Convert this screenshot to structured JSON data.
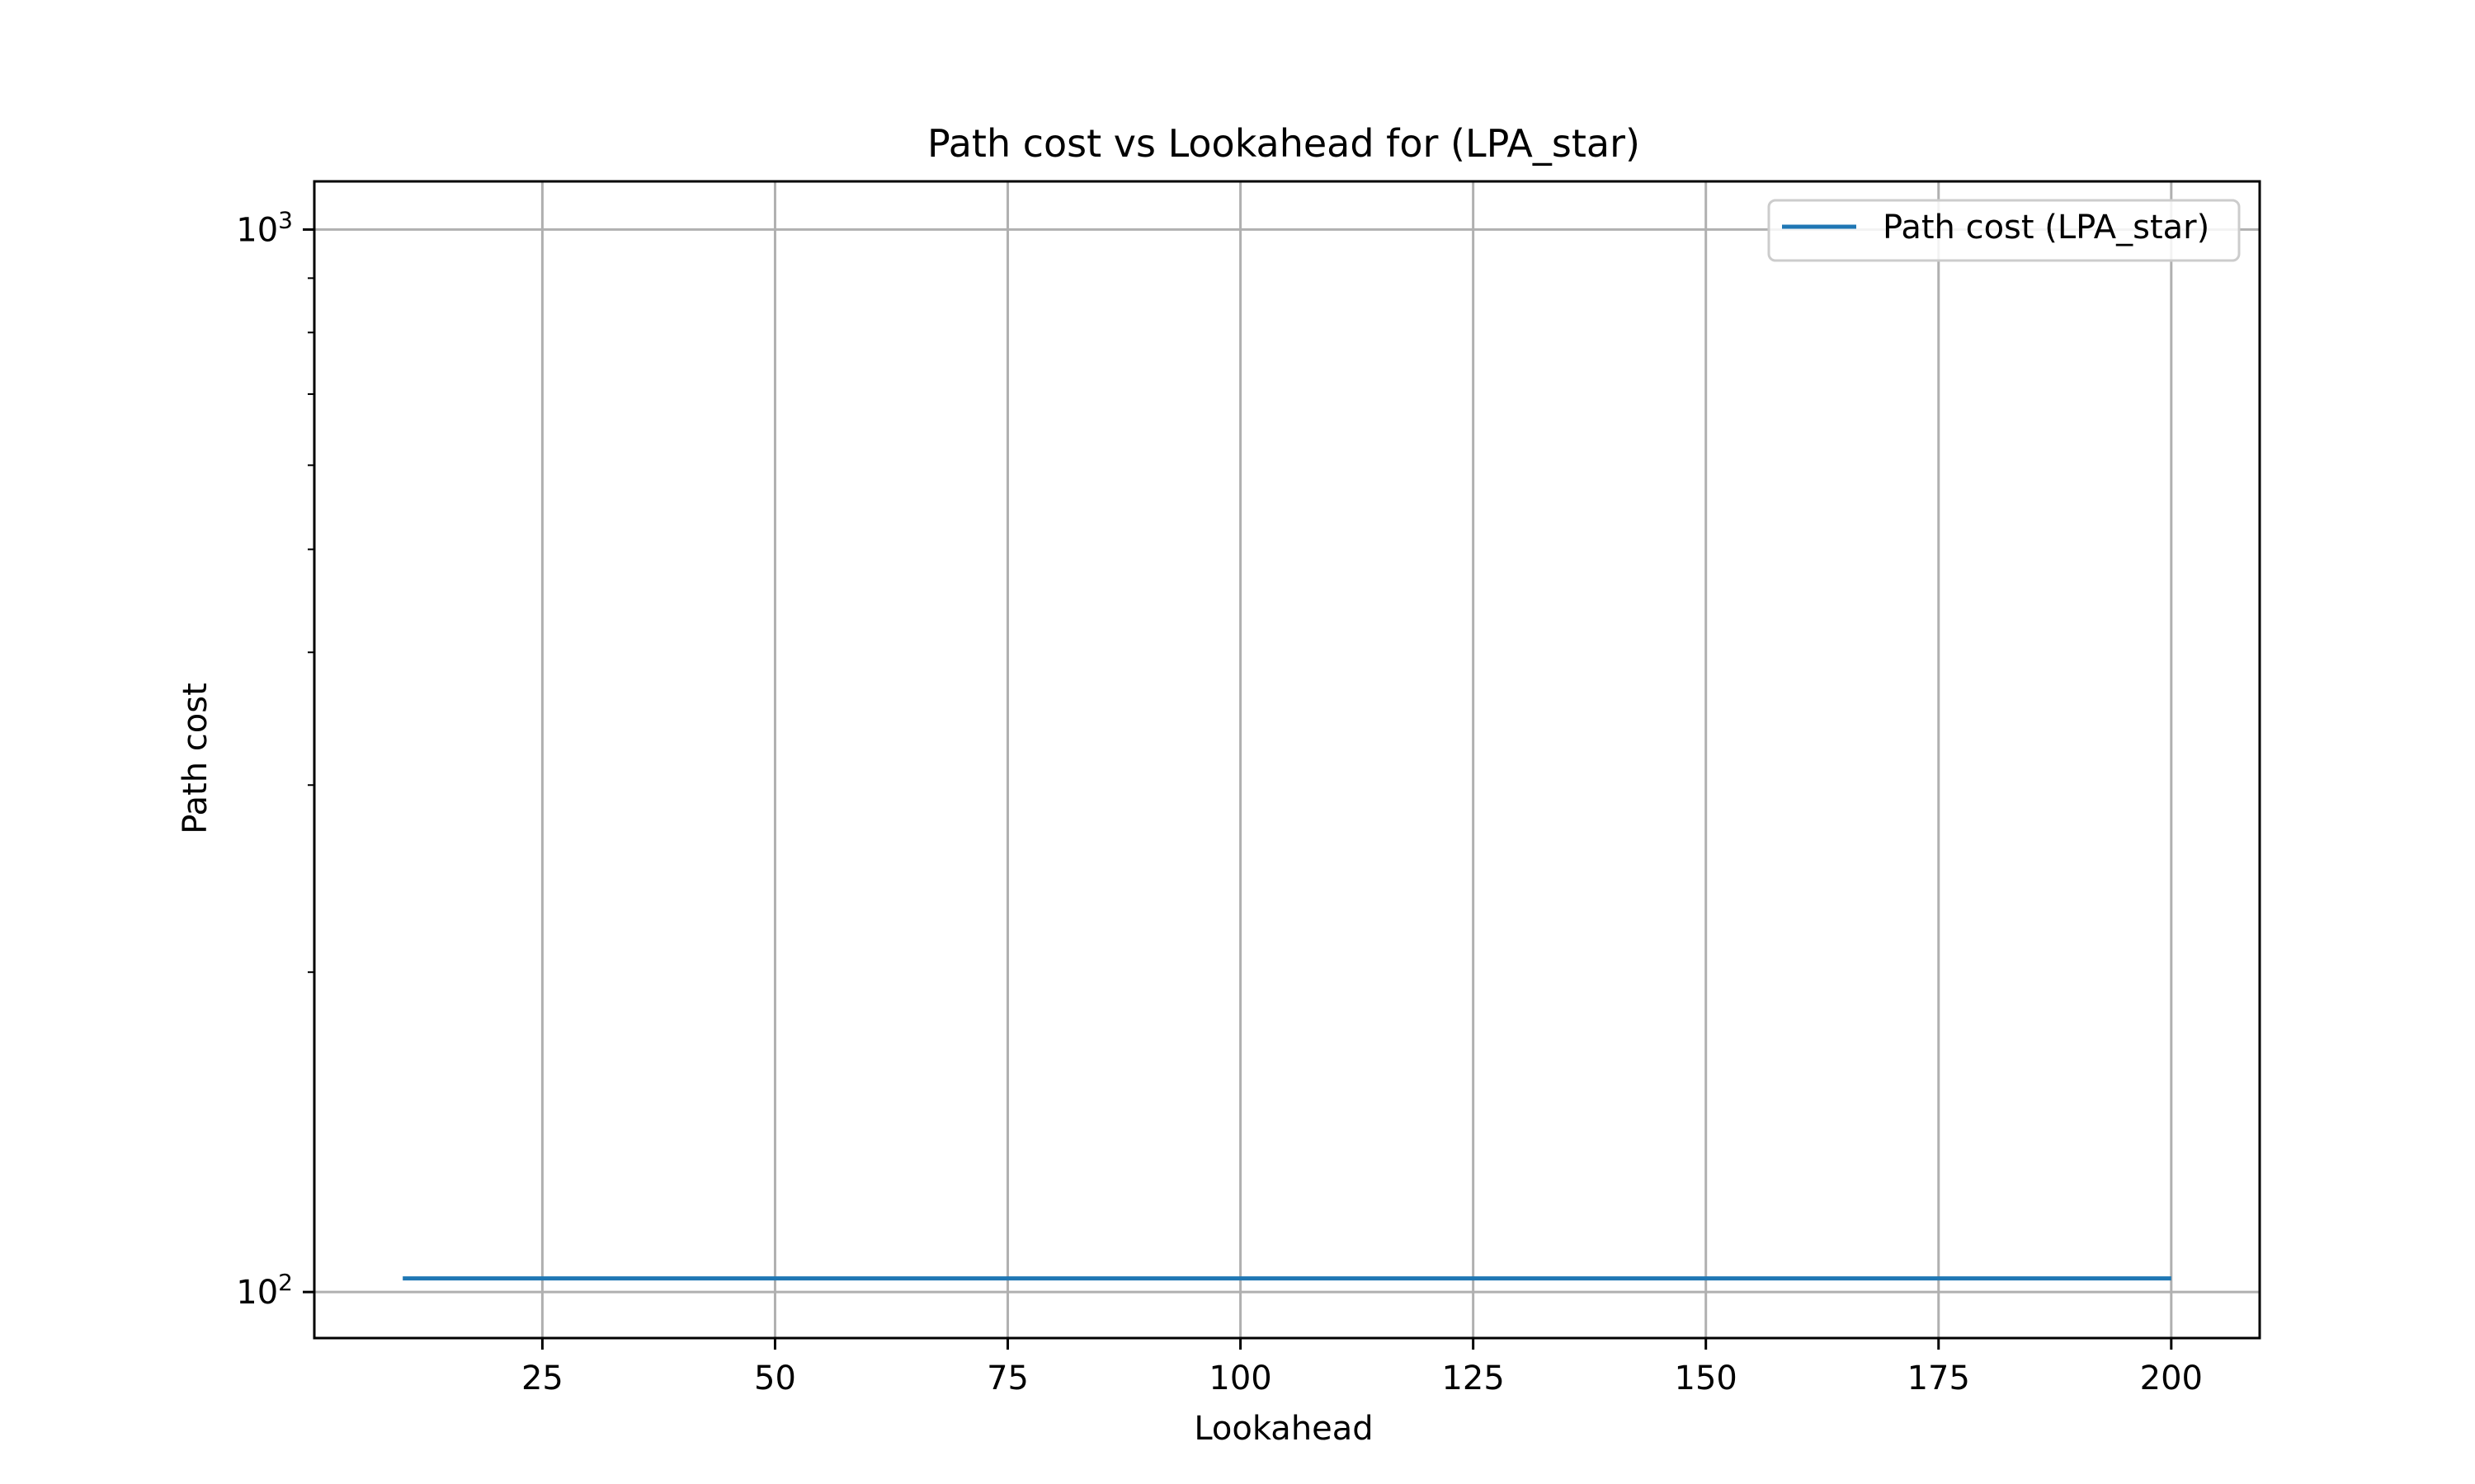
{
  "chart_data": {
    "type": "line",
    "title": "Path cost vs Lookahead for  (LPA_star)",
    "xlabel": "Lookahead",
    "ylabel": "Path cost",
    "x_ticks": [
      25,
      50,
      75,
      100,
      125,
      150,
      175,
      200
    ],
    "x_tick_labels": [
      "25",
      "50",
      "75",
      "100",
      "125",
      "150",
      "175",
      "200"
    ],
    "y_scale": "log",
    "y_ticks": [
      100,
      1000
    ],
    "y_tick_labels": [
      {
        "base": "10",
        "exp": "2"
      },
      {
        "base": "10",
        "exp": "3"
      }
    ],
    "xlim": [
      0.5,
      209.5
    ],
    "ylim": [
      90.5,
      1110
    ],
    "grid": true,
    "legend_position": "top-right",
    "series": [
      {
        "name": "Path cost (LPA_star)",
        "color": "#1f77b4",
        "x": [
          10,
          20,
          30,
          40,
          50,
          60,
          70,
          80,
          90,
          100,
          110,
          120,
          130,
          140,
          150,
          160,
          170,
          180,
          190,
          200
        ],
        "y": [
          103,
          103,
          103,
          103,
          103,
          103,
          103,
          103,
          103,
          103,
          103,
          103,
          103,
          103,
          103,
          103,
          103,
          103,
          103,
          103
        ]
      }
    ]
  }
}
